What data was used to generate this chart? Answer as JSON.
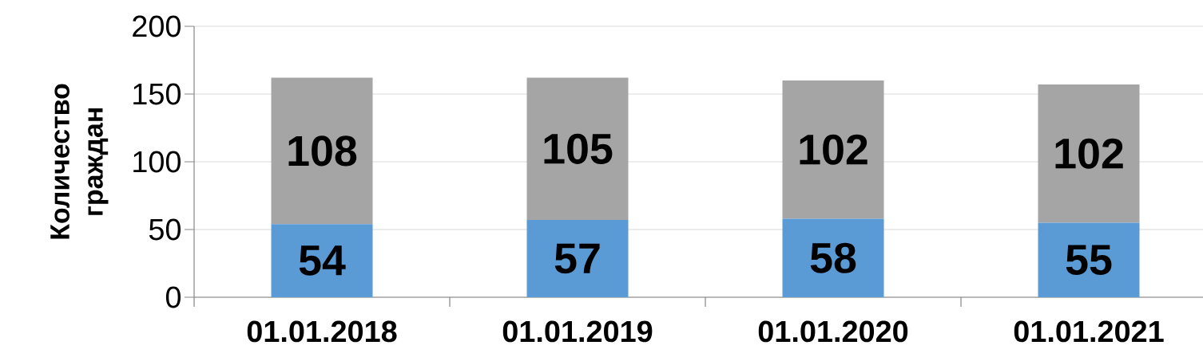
{
  "chart_data": {
    "type": "bar",
    "stacked": true,
    "ylabel": "Количество граждан",
    "categories": [
      "01.01.2018",
      "01.01.2019",
      "01.01.2020",
      "01.01.2021"
    ],
    "series": [
      {
        "color": "#5b9bd5",
        "values": [
          54,
          57,
          58,
          55
        ]
      },
      {
        "color": "#a5a5a5",
        "values": [
          108,
          105,
          102,
          102
        ]
      }
    ],
    "ylim": [
      0,
      200
    ],
    "yticks": [
      0,
      50,
      100,
      150,
      200
    ],
    "grid": "y",
    "data_labels": true
  }
}
